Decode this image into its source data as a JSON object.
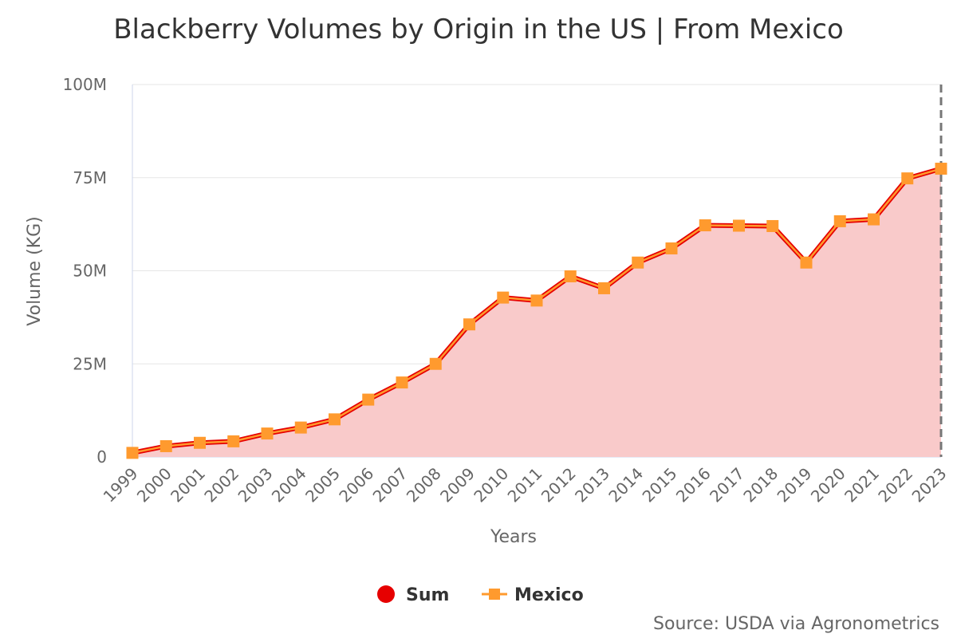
{
  "chart_data": {
    "type": "area",
    "title": "Blackberry Volumes by Origin in the US | From Mexico",
    "xlabel": "Years",
    "ylabel": "Volume (KG)",
    "categories": [
      "1999",
      "2000",
      "2001",
      "2002",
      "2003",
      "2004",
      "2005",
      "2006",
      "2007",
      "2008",
      "2009",
      "2010",
      "2011",
      "2012",
      "2013",
      "2014",
      "2015",
      "2016",
      "2017",
      "2018",
      "2019",
      "2020",
      "2021",
      "2022",
      "2023"
    ],
    "ylim": [
      0,
      100000000
    ],
    "yticks": [
      0,
      25000000,
      50000000,
      75000000,
      100000000
    ],
    "ytick_labels": [
      "0",
      "25M",
      "50M",
      "75M",
      "100M"
    ],
    "series": [
      {
        "name": "Sum",
        "type": "area",
        "marker": "circle",
        "color": "#e60000",
        "fill": "#f9caca",
        "values": [
          1100000,
          2900000,
          3800000,
          4200000,
          6300000,
          7900000,
          10100000,
          15400000,
          20000000,
          25000000,
          35600000,
          42800000,
          42000000,
          48500000,
          45300000,
          52200000,
          56000000,
          62200000,
          62100000,
          62000000,
          52200000,
          63300000,
          63800000,
          74800000,
          77400000
        ]
      },
      {
        "name": "Mexico",
        "type": "line",
        "marker": "square",
        "color": "#ff9a2e",
        "values": [
          1100000,
          2900000,
          3800000,
          4200000,
          6300000,
          7900000,
          10100000,
          15400000,
          20000000,
          25000000,
          35600000,
          42800000,
          42000000,
          48500000,
          45300000,
          52200000,
          56000000,
          62200000,
          62100000,
          62000000,
          52200000,
          63300000,
          63800000,
          74800000,
          77400000
        ]
      }
    ],
    "grid": true,
    "legend_position": "bottom-center",
    "source": "Source: USDA via Agronometrics"
  }
}
